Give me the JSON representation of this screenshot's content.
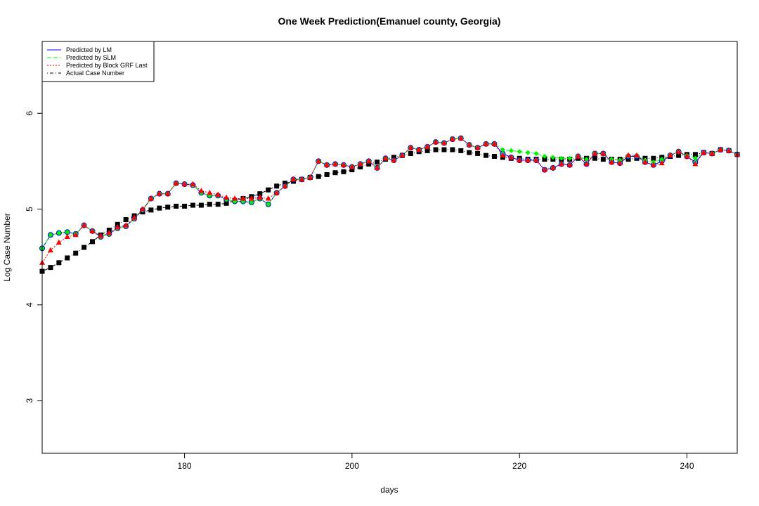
{
  "chart_data": {
    "type": "line",
    "title": "One Week Prediction(Emanuel county, Georgia)",
    "xlabel": "days",
    "ylabel": "Log Case Number",
    "xlim": [
      163,
      246
    ],
    "ylim": [
      2.45,
      6.75
    ],
    "xticks": [
      180,
      200,
      220,
      240
    ],
    "yticks": [
      3,
      4,
      5,
      6
    ],
    "legend_position": "top-left",
    "x": [
      163,
      164,
      165,
      166,
      167,
      168,
      169,
      170,
      171,
      172,
      173,
      174,
      175,
      176,
      177,
      178,
      179,
      180,
      181,
      182,
      183,
      184,
      185,
      186,
      187,
      188,
      189,
      190,
      191,
      192,
      193,
      194,
      195,
      196,
      197,
      198,
      199,
      200,
      201,
      202,
      203,
      204,
      205,
      206,
      207,
      208,
      209,
      210,
      211,
      212,
      213,
      214,
      215,
      216,
      217,
      218,
      219,
      220,
      221,
      222,
      223,
      224,
      225,
      226,
      227,
      228,
      229,
      230,
      231,
      232,
      233,
      234,
      235,
      236,
      237,
      238,
      239,
      240,
      241,
      242,
      243,
      244,
      245,
      246
    ],
    "series": [
      {
        "name": "Predicted by LM",
        "color": "#0000ff",
        "line": "solid",
        "marker": "circle",
        "values": [
          4.59,
          4.73,
          4.75,
          4.76,
          4.74,
          4.83,
          4.77,
          4.71,
          4.74,
          4.8,
          4.82,
          4.9,
          4.99,
          5.11,
          5.16,
          5.16,
          5.27,
          5.26,
          5.25,
          5.17,
          5.14,
          5.14,
          5.1,
          5.08,
          5.08,
          5.07,
          5.11,
          5.05,
          5.17,
          5.24,
          5.31,
          5.31,
          5.33,
          5.5,
          5.46,
          5.47,
          5.46,
          5.44,
          5.47,
          5.5,
          5.43,
          5.53,
          5.51,
          5.56,
          5.64,
          5.62,
          5.65,
          5.7,
          5.69,
          5.73,
          5.74,
          5.67,
          5.64,
          5.68,
          5.68,
          5.58,
          5.54,
          5.51,
          5.51,
          5.51,
          5.41,
          5.43,
          5.47,
          5.46,
          5.55,
          5.47,
          5.58,
          5.58,
          5.49,
          5.48,
          5.55,
          5.55,
          5.49,
          5.46,
          5.5,
          5.56,
          5.6,
          5.55,
          5.49,
          5.59,
          5.58,
          5.62,
          5.61,
          5.57
        ]
      },
      {
        "name": "Predicted by SLM",
        "color": "#00ff00",
        "line": "dashed",
        "marker": "diamond",
        "values": [
          4.59,
          4.73,
          4.75,
          4.76,
          4.74,
          4.83,
          4.77,
          4.71,
          4.74,
          4.8,
          4.82,
          4.9,
          4.99,
          5.11,
          5.16,
          5.16,
          5.27,
          5.26,
          5.25,
          5.17,
          5.14,
          5.14,
          5.1,
          5.08,
          5.08,
          5.07,
          5.11,
          5.05,
          5.17,
          5.24,
          5.31,
          5.31,
          5.33,
          5.5,
          5.46,
          5.47,
          5.46,
          5.44,
          5.47,
          5.5,
          5.43,
          5.53,
          5.51,
          5.56,
          5.64,
          5.62,
          5.65,
          5.7,
          5.69,
          5.73,
          5.74,
          5.67,
          5.64,
          5.68,
          5.68,
          5.62,
          5.61,
          5.6,
          5.59,
          5.58,
          5.55,
          5.54,
          5.53,
          5.53,
          5.55,
          5.52,
          5.58,
          5.58,
          5.52,
          5.51,
          5.56,
          5.56,
          5.51,
          5.49,
          5.52,
          5.56,
          5.6,
          5.56,
          5.53,
          5.59,
          5.58,
          5.62,
          5.61,
          5.57
        ]
      },
      {
        "name": "Predicted by Block GRF Last",
        "color": "#ff0000",
        "line": "dotted",
        "marker": "triangle",
        "values": [
          4.44,
          4.57,
          4.65,
          4.71,
          4.73,
          4.83,
          4.77,
          4.72,
          4.75,
          4.81,
          4.83,
          4.91,
          5.0,
          5.11,
          5.16,
          5.16,
          5.27,
          5.26,
          5.26,
          5.19,
          5.17,
          5.15,
          5.12,
          5.11,
          5.11,
          5.11,
          5.12,
          5.11,
          5.17,
          5.24,
          5.31,
          5.31,
          5.33,
          5.5,
          5.46,
          5.47,
          5.46,
          5.44,
          5.47,
          5.5,
          5.43,
          5.53,
          5.51,
          5.56,
          5.64,
          5.62,
          5.65,
          5.7,
          5.69,
          5.73,
          5.74,
          5.67,
          5.64,
          5.68,
          5.68,
          5.56,
          5.54,
          5.51,
          5.51,
          5.51,
          5.41,
          5.43,
          5.47,
          5.46,
          5.55,
          5.47,
          5.58,
          5.58,
          5.49,
          5.48,
          5.56,
          5.56,
          5.49,
          5.46,
          5.48,
          5.56,
          5.6,
          5.55,
          5.47,
          5.59,
          5.58,
          5.62,
          5.61,
          5.57
        ]
      },
      {
        "name": "Actual Case Number",
        "color": "#000000",
        "line": "dashdot",
        "marker": "square",
        "values": [
          4.35,
          4.39,
          4.44,
          4.49,
          4.54,
          4.6,
          4.66,
          4.73,
          4.78,
          4.84,
          4.89,
          4.93,
          4.97,
          4.99,
          5.01,
          5.02,
          5.03,
          5.03,
          5.04,
          5.04,
          5.05,
          5.05,
          5.06,
          5.09,
          5.11,
          5.13,
          5.16,
          5.2,
          5.24,
          5.27,
          5.29,
          5.31,
          5.33,
          5.34,
          5.36,
          5.38,
          5.39,
          5.41,
          5.44,
          5.47,
          5.49,
          5.52,
          5.54,
          5.56,
          5.58,
          5.6,
          5.61,
          5.62,
          5.62,
          5.62,
          5.61,
          5.59,
          5.58,
          5.56,
          5.55,
          5.54,
          5.53,
          5.53,
          5.52,
          5.52,
          5.52,
          5.52,
          5.52,
          5.52,
          5.53,
          5.53,
          5.53,
          5.52,
          5.52,
          5.52,
          5.52,
          5.53,
          5.53,
          5.53,
          5.54,
          5.55,
          5.56,
          5.57,
          5.57,
          5.59,
          5.58,
          5.62,
          5.61,
          5.57
        ]
      }
    ]
  }
}
